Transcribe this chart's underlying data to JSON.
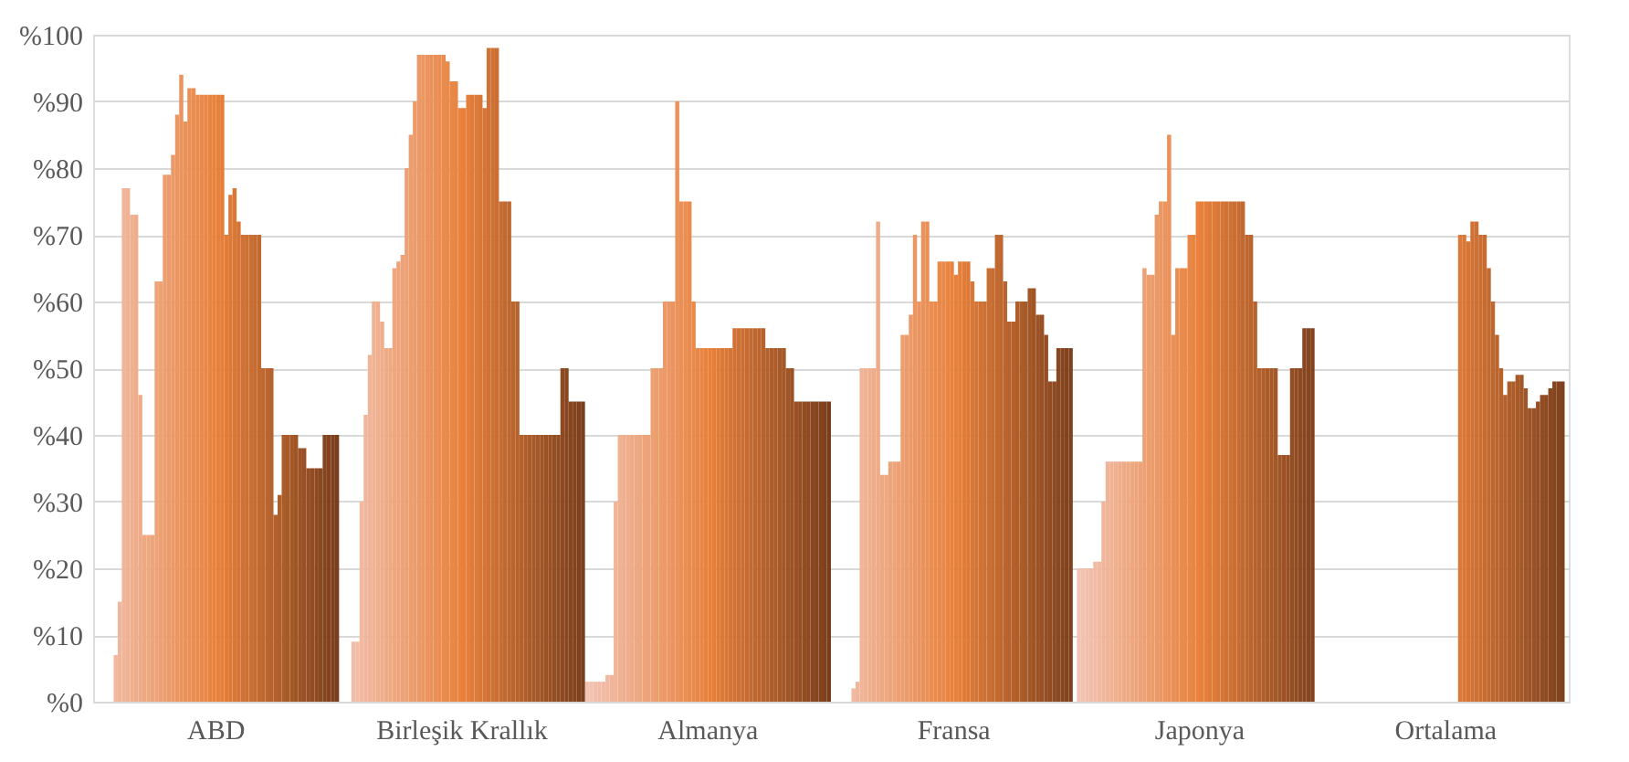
{
  "chart_data": {
    "type": "bar",
    "categories": [
      "ABD",
      "Birleşik Krallık",
      "Almanya",
      "Fransa",
      "Japonya",
      "Ortalama"
    ],
    "ylim": [
      0,
      100
    ],
    "yticks": [
      {
        "value": 0,
        "label": "%0"
      },
      {
        "value": 10,
        "label": "%10"
      },
      {
        "value": 20,
        "label": "%20"
      },
      {
        "value": 30,
        "label": "%30"
      },
      {
        "value": 40,
        "label": "%40"
      },
      {
        "value": 50,
        "label": "%50"
      },
      {
        "value": 60,
        "label": "%60"
      },
      {
        "value": 70,
        "label": "%70"
      },
      {
        "value": 80,
        "label": "%80"
      },
      {
        "value": 90,
        "label": "%90"
      },
      {
        "value": 100,
        "label": "%100"
      }
    ],
    "grid": "y",
    "legend": false,
    "series": [
      {
        "color": "#f2c4b4",
        "values": [
          null,
          null,
          3,
          null,
          20,
          null
        ]
      },
      {
        "color": "#f2c2b0",
        "values": [
          null,
          null,
          3,
          null,
          20,
          null
        ]
      },
      {
        "color": "#f1bfac",
        "values": [
          null,
          null,
          3,
          null,
          20,
          null
        ]
      },
      {
        "color": "#f1bda8",
        "values": [
          null,
          9,
          3,
          null,
          20,
          null
        ]
      },
      {
        "color": "#f1bba4",
        "values": [
          null,
          9,
          3,
          null,
          21,
          null
        ]
      },
      {
        "color": "#f0b9a0",
        "values": [
          7,
          30,
          4,
          2,
          21,
          null
        ]
      },
      {
        "color": "#f0b69c",
        "values": [
          15,
          43,
          4,
          3,
          30,
          null
        ]
      },
      {
        "color": "#f0b498",
        "values": [
          77,
          52,
          30,
          50,
          36,
          null
        ]
      },
      {
        "color": "#efb293",
        "values": [
          77,
          60,
          40,
          50,
          36,
          null
        ]
      },
      {
        "color": "#efb08f",
        "values": [
          73,
          60,
          40,
          50,
          36,
          null
        ]
      },
      {
        "color": "#efad8b",
        "values": [
          73,
          57,
          40,
          50,
          36,
          null
        ]
      },
      {
        "color": "#eeab87",
        "values": [
          46,
          53,
          40,
          72,
          36,
          null
        ]
      },
      {
        "color": "#eea983",
        "values": [
          25,
          53,
          40,
          34,
          36,
          null
        ]
      },
      {
        "color": "#eea77f",
        "values": [
          25,
          65,
          40,
          34,
          36,
          null
        ]
      },
      {
        "color": "#eda47b",
        "values": [
          25,
          66,
          40,
          36,
          36,
          null
        ]
      },
      {
        "color": "#eda277",
        "values": [
          63,
          67,
          40,
          36,
          36,
          null
        ]
      },
      {
        "color": "#eda073",
        "values": [
          63,
          80,
          50,
          36,
          65,
          null
        ]
      },
      {
        "color": "#ec9e6f",
        "values": [
          79,
          85,
          50,
          55,
          64,
          null
        ]
      },
      {
        "color": "#ec9b6b",
        "values": [
          79,
          90,
          50,
          55,
          64,
          null
        ]
      },
      {
        "color": "#ec9967",
        "values": [
          82,
          97,
          60,
          58,
          73,
          null
        ]
      },
      {
        "color": "#eb9763",
        "values": [
          88,
          97,
          60,
          70,
          75,
          null
        ]
      },
      {
        "color": "#eb945f",
        "values": [
          94,
          97,
          60,
          60,
          75,
          null
        ]
      },
      {
        "color": "#eb925b",
        "values": [
          87,
          97,
          90,
          72,
          85,
          null
        ]
      },
      {
        "color": "#ea9056",
        "values": [
          92,
          97,
          75,
          72,
          55,
          null
        ]
      },
      {
        "color": "#ea8e52",
        "values": [
          92,
          97,
          75,
          60,
          65,
          null
        ]
      },
      {
        "color": "#ea8b4e",
        "values": [
          91,
          97,
          75,
          60,
          65,
          null
        ]
      },
      {
        "color": "#e9894a",
        "values": [
          91,
          96,
          60,
          66,
          65,
          null
        ]
      },
      {
        "color": "#e98746",
        "values": [
          91,
          93,
          53,
          66,
          70,
          null
        ]
      },
      {
        "color": "#e98542",
        "values": [
          91,
          93,
          53,
          66,
          70,
          null
        ]
      },
      {
        "color": "#e8823e",
        "values": [
          91,
          89,
          53,
          66,
          75,
          null
        ]
      },
      {
        "color": "#e8803a",
        "values": [
          91,
          89,
          53,
          64,
          75,
          null
        ]
      },
      {
        "color": "#e47e39",
        "values": [
          91,
          91,
          53,
          66,
          75,
          null
        ]
      },
      {
        "color": "#e07b38",
        "values": [
          70,
          91,
          53,
          66,
          75,
          null
        ]
      },
      {
        "color": "#dd7937",
        "values": [
          76,
          91,
          53,
          66,
          75,
          70
        ]
      },
      {
        "color": "#d97736",
        "values": [
          77,
          91,
          53,
          63,
          75,
          70
        ]
      },
      {
        "color": "#d57535",
        "values": [
          72,
          89,
          53,
          60,
          75,
          69
        ]
      },
      {
        "color": "#d17234",
        "values": [
          70,
          98,
          56,
          60,
          75,
          72
        ]
      },
      {
        "color": "#cd7033",
        "values": [
          70,
          98,
          56,
          60,
          75,
          72
        ]
      },
      {
        "color": "#ca6e32",
        "values": [
          70,
          98,
          56,
          65,
          75,
          70
        ]
      },
      {
        "color": "#c66c31",
        "values": [
          70,
          75,
          56,
          65,
          75,
          70
        ]
      },
      {
        "color": "#c26930",
        "values": [
          70,
          75,
          56,
          70,
          75,
          65
        ]
      },
      {
        "color": "#be672f",
        "values": [
          50,
          75,
          56,
          70,
          70,
          60
        ]
      },
      {
        "color": "#bb652e",
        "values": [
          50,
          60,
          56,
          63,
          70,
          55
        ]
      },
      {
        "color": "#b7622d",
        "values": [
          50,
          60,
          56,
          57,
          60,
          50
        ]
      },
      {
        "color": "#b3602c",
        "values": [
          28,
          40,
          53,
          57,
          50,
          46
        ]
      },
      {
        "color": "#af5e2a",
        "values": [
          31,
          40,
          53,
          60,
          50,
          48
        ]
      },
      {
        "color": "#ab5c29",
        "values": [
          40,
          40,
          53,
          60,
          50,
          48
        ]
      },
      {
        "color": "#a85928",
        "values": [
          40,
          40,
          53,
          60,
          50,
          49
        ]
      },
      {
        "color": "#a45727",
        "values": [
          40,
          40,
          53,
          62,
          50,
          49
        ]
      },
      {
        "color": "#a05526",
        "values": [
          40,
          40,
          50,
          62,
          37,
          47
        ]
      },
      {
        "color": "#9c5225",
        "values": [
          38,
          40,
          50,
          58,
          37,
          44
        ]
      },
      {
        "color": "#985024",
        "values": [
          38,
          40,
          45,
          58,
          37,
          44
        ]
      },
      {
        "color": "#954e23",
        "values": [
          35,
          40,
          45,
          55,
          50,
          45
        ]
      },
      {
        "color": "#914c22",
        "values": [
          35,
          40,
          45,
          48,
          50,
          46
        ]
      },
      {
        "color": "#8d4921",
        "values": [
          35,
          50,
          45,
          48,
          50,
          46
        ]
      },
      {
        "color": "#894720",
        "values": [
          35,
          50,
          45,
          53,
          56,
          47
        ]
      },
      {
        "color": "#85451f",
        "values": [
          40,
          45,
          45,
          53,
          56,
          48
        ]
      },
      {
        "color": "#82431e",
        "values": [
          40,
          45,
          45,
          53,
          56,
          48
        ]
      },
      {
        "color": "#7e401d",
        "values": [
          40,
          45,
          45,
          53,
          null,
          48
        ]
      },
      {
        "color": "#7a3e1c",
        "values": [
          40,
          45,
          45,
          null,
          null,
          null
        ]
      }
    ]
  }
}
